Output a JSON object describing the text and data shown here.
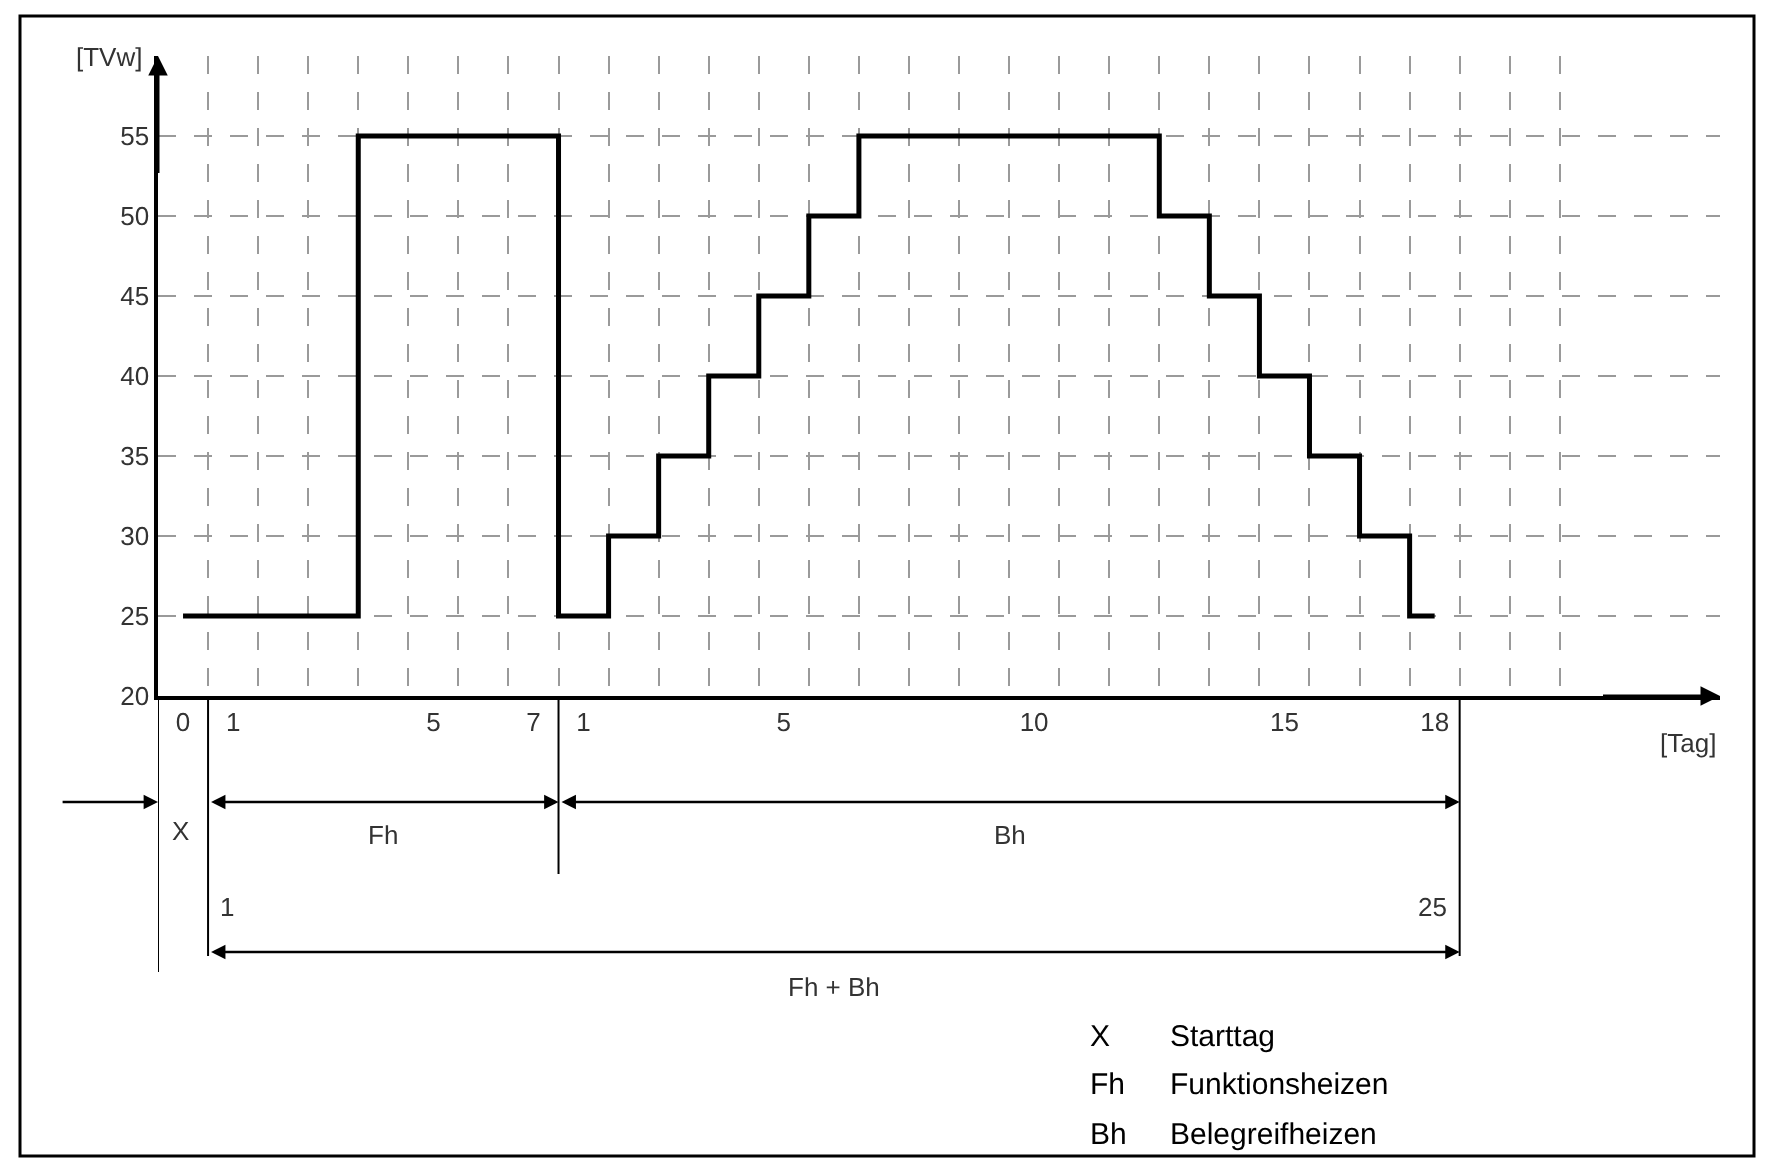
{
  "chart_data": {
    "type": "step",
    "xlabel": "[Tag]",
    "ylabel": "[TVw]",
    "categories": [
      "0",
      "1",
      null,
      null,
      null,
      "5",
      null,
      "7",
      "1",
      null,
      null,
      null,
      "5",
      null,
      null,
      null,
      null,
      "10",
      null,
      null,
      null,
      null,
      "15",
      null,
      null,
      "18",
      null,
      null,
      null
    ],
    "series": [
      {
        "color": "#000000",
        "values": [
          25,
          25,
          25,
          25,
          55,
          55,
          55,
          55,
          25,
          30,
          35,
          40,
          45,
          50,
          55,
          55,
          55,
          55,
          55,
          55,
          50,
          45,
          40,
          35,
          30,
          25,
          null,
          null,
          null
        ]
      }
    ],
    "ylim": [
      20,
      60
    ],
    "yticks": [
      20,
      25,
      30,
      35,
      40,
      45,
      50,
      55
    ],
    "grid": true,
    "marker": "none",
    "line_style": "solid",
    "annotations": [
      "X",
      "Fh",
      "Bh",
      "1",
      "25",
      "Fh + Bh",
      "X",
      "Starttag",
      "Fh",
      "Funktionsheizen",
      "Bh",
      "Belegreifheizen"
    ]
  }
}
